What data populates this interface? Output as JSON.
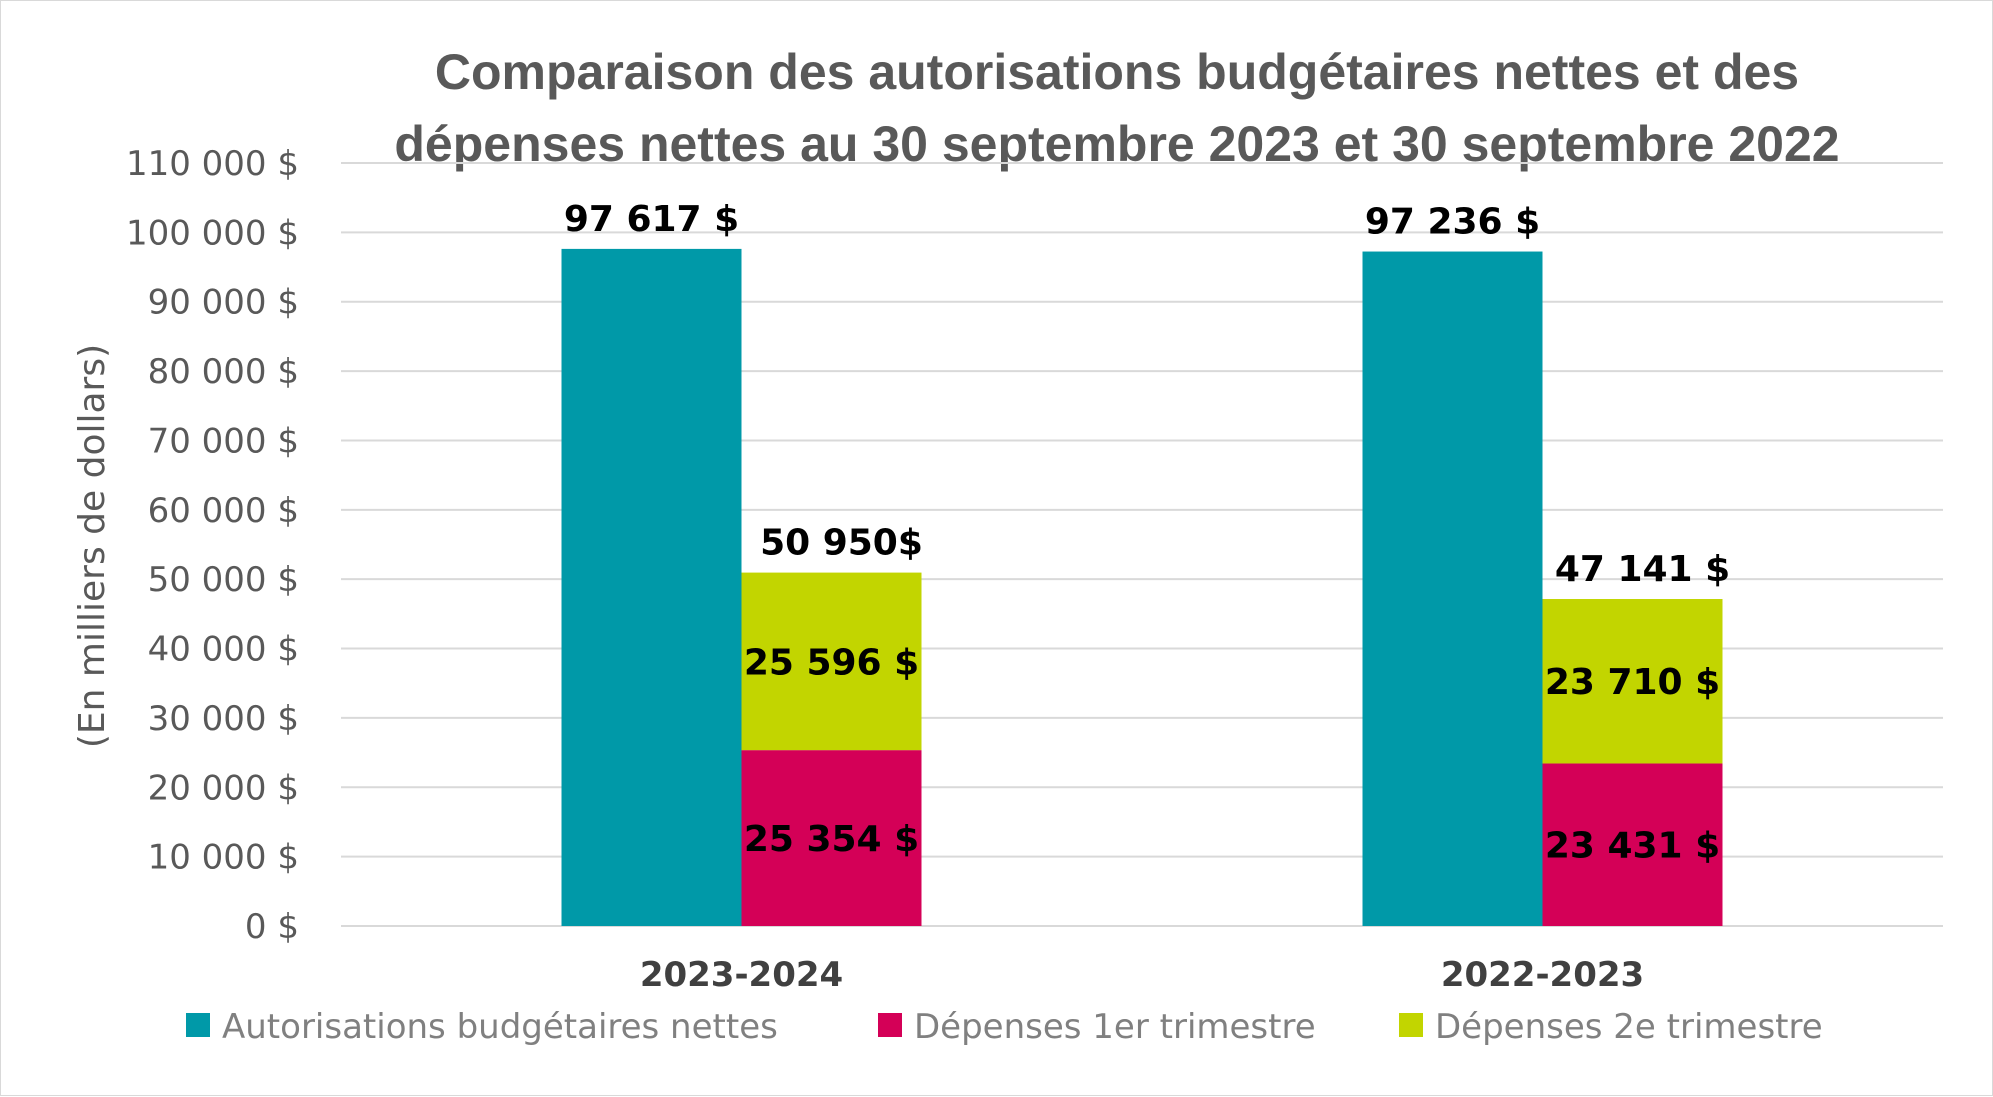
{
  "chart_data": {
    "type": "bar",
    "stacked_groups": [
      [
        "Dépenses 1er trimestre",
        "Dépenses 2e trimestre"
      ]
    ],
    "title_lines": [
      "Comparaison des autorisations budgétaires nettes et des",
      "dépenses nettes au 30 septembre 2023 et 30 septembre 2022"
    ],
    "ylabel": "(En milliers de dollars)",
    "xlabel": "",
    "ylim": [
      0,
      110000
    ],
    "yticks": [
      0,
      10000,
      20000,
      30000,
      40000,
      50000,
      60000,
      70000,
      80000,
      90000,
      100000,
      110000
    ],
    "ytick_labels": [
      "0 $",
      "10 000 $",
      "20 000 $",
      "30 000 $",
      "40 000 $",
      "50 000 $",
      "60 000 $",
      "70 000 $",
      "80 000 $",
      "90 000 $",
      "100 000 $",
      "110 000 $"
    ],
    "categories": [
      "2023-2024",
      "2022-2023"
    ],
    "series": [
      {
        "name": "Autorisations budgétaires nettes",
        "color": "#0099a8",
        "values": [
          97617,
          97236
        ],
        "labels": [
          "97 617 $",
          "97 236 $"
        ]
      },
      {
        "name": "Dépenses 1er trimestre",
        "color": "#d40057",
        "values": [
          25354,
          23431
        ],
        "labels": [
          "25 354 $",
          "23 431 $"
        ]
      },
      {
        "name": "Dépenses 2e trimestre",
        "color": "#c2d500",
        "values": [
          25596,
          23710
        ],
        "labels": [
          "25 596 $",
          "23 710 $"
        ]
      }
    ],
    "stack_totals": [
      50950,
      47141
    ],
    "stack_total_labels": [
      "50 950$",
      "47 141 $"
    ],
    "grid": true,
    "legend": "bottom"
  }
}
